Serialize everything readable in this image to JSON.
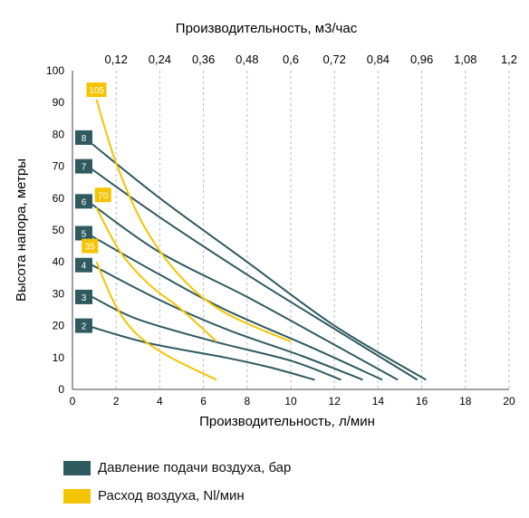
{
  "chart_data": {
    "type": "line",
    "xlabel": "Производительность, л/мин",
    "ylabel": "Высота напора, метры",
    "x2label": "Производительность, м3/час",
    "xlim": [
      0,
      20
    ],
    "ylim": [
      0,
      100
    ],
    "x_ticks": [
      "0",
      "2",
      "4",
      "6",
      "8",
      "10",
      "12",
      "14",
      "16",
      "18",
      "20"
    ],
    "y_ticks": [
      "0",
      "10",
      "20",
      "30",
      "40",
      "50",
      "60",
      "70",
      "80",
      "90",
      "100"
    ],
    "x2_ticks": [
      "0,12",
      "0,24",
      "0,36",
      "0,48",
      "0,6",
      "0,72",
      "0,84",
      "0,96",
      "1,08",
      "1,2"
    ],
    "x2_values": [
      2,
      4,
      6,
      8,
      10,
      12,
      14,
      16,
      18,
      20
    ],
    "grid": "vertical-dashed",
    "colors": {
      "pressure": "#2f5a60",
      "air": "#f5c400",
      "axis": "#444444",
      "grid": "#bbbbbb"
    },
    "pressure_series": [
      {
        "name": "2",
        "points": [
          [
            0.9,
            19.5
          ],
          [
            3.5,
            14.5
          ],
          [
            7,
            10
          ],
          [
            9,
            7
          ],
          [
            11.1,
            3
          ]
        ]
      },
      {
        "name": "3",
        "points": [
          [
            0.9,
            29
          ],
          [
            3,
            22
          ],
          [
            6.5,
            15
          ],
          [
            10,
            9
          ],
          [
            12.3,
            3
          ]
        ]
      },
      {
        "name": "4",
        "points": [
          [
            0.9,
            39
          ],
          [
            4,
            28
          ],
          [
            7,
            19
          ],
          [
            10.5,
            10.5
          ],
          [
            13.3,
            3
          ]
        ]
      },
      {
        "name": "5",
        "points": [
          [
            0.9,
            48
          ],
          [
            4,
            36
          ],
          [
            7,
            25
          ],
          [
            11,
            13
          ],
          [
            14.2,
            3
          ]
        ]
      },
      {
        "name": "6",
        "points": [
          [
            0.9,
            58
          ],
          [
            4,
            43
          ],
          [
            8,
            29
          ],
          [
            12,
            14
          ],
          [
            14.9,
            3
          ]
        ]
      },
      {
        "name": "7",
        "points": [
          [
            0.9,
            69
          ],
          [
            4,
            54
          ],
          [
            8,
            36
          ],
          [
            12,
            19
          ],
          [
            15.8,
            3
          ]
        ]
      },
      {
        "name": "8",
        "points": [
          [
            0.9,
            77
          ],
          [
            4,
            60
          ],
          [
            8,
            40
          ],
          [
            12,
            20
          ],
          [
            16.2,
            3
          ]
        ]
      }
    ],
    "air_series": [
      {
        "name": "105",
        "points": [
          [
            1.1,
            91
          ],
          [
            2,
            71
          ],
          [
            3.3,
            51
          ],
          [
            5,
            35
          ],
          [
            7,
            24
          ],
          [
            10,
            15
          ]
        ]
      },
      {
        "name": "70",
        "points": [
          [
            1.1,
            57
          ],
          [
            2.2,
            43
          ],
          [
            3.5,
            33
          ],
          [
            5,
            25
          ],
          [
            6.6,
            15
          ]
        ]
      },
      {
        "name": "35",
        "points": [
          [
            1.1,
            40
          ],
          [
            2,
            26
          ],
          [
            3,
            17
          ],
          [
            4.5,
            10
          ],
          [
            6.6,
            3
          ]
        ]
      }
    ],
    "pressure_label_y": [
      20,
      29,
      39,
      49,
      59,
      70,
      79
    ],
    "air_label_points": [
      [
        1.1,
        94
      ],
      [
        1.4,
        61
      ],
      [
        0.8,
        45
      ]
    ]
  },
  "legend": [
    {
      "label": "Давление подачи воздуха, бар",
      "color": "#2f5a60"
    },
    {
      "label": "Расход воздуха, Nl/мин",
      "color": "#f5c400"
    }
  ]
}
